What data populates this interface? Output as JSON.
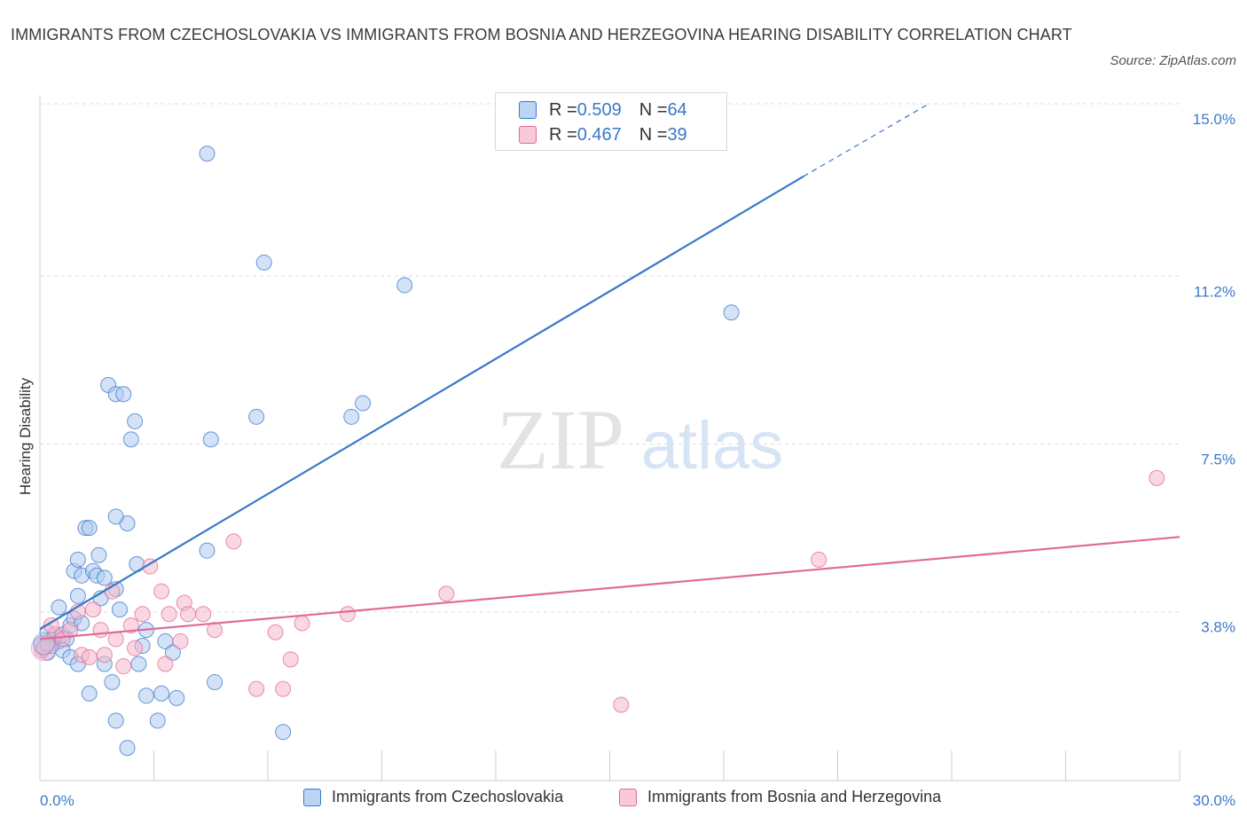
{
  "title": "IMMIGRANTS FROM CZECHOSLOVAKIA VS IMMIGRANTS FROM BOSNIA AND HERZEGOVINA HEARING DISABILITY CORRELATION CHART",
  "source": "Source: ZipAtlas.com",
  "watermark": {
    "zip": "ZIP",
    "atlas": "atlas"
  },
  "legend": {
    "blue": {
      "r_label": "R = ",
      "r_value": "0.509",
      "n_label": "N = ",
      "n_value": "64"
    },
    "pink": {
      "r_label": "R = ",
      "r_value": "0.467",
      "n_label": "N = ",
      "n_value": "39"
    }
  },
  "colors": {
    "blue": "#3a78c9",
    "blue_fill": "#aecbf0",
    "pink": "#e06a96",
    "pink_fill": "#f5b8cc",
    "grid": "#dddddd",
    "axis_label": "#3a78c9"
  },
  "chart_data": {
    "type": "scatter",
    "xlabel": "",
    "ylabel": "Hearing Disability",
    "xlim": [
      0,
      30
    ],
    "ylim": [
      0,
      15
    ],
    "x_tick_labels": [
      {
        "value": 0,
        "label": "0.0%"
      },
      {
        "value": 30,
        "label": "30.0%"
      }
    ],
    "y_tick_labels": [
      {
        "value": 3.8,
        "label": "3.8%"
      },
      {
        "value": 7.5,
        "label": "7.5%"
      },
      {
        "value": 11.2,
        "label": "11.2%"
      },
      {
        "value": 15.0,
        "label": "15.0%"
      }
    ],
    "grid": true,
    "legend_position": "top-center",
    "series": [
      {
        "name": "Immigrants from Czechoslovakia",
        "color": "#3a78c9",
        "trend": {
          "x0": 0,
          "y0": 3.42,
          "x1": 20.1,
          "y1": 13.4,
          "dashed_to_x": 23.4,
          "dashed_to_y": 15.0
        },
        "points": [
          [
            0.1,
            3.0
          ],
          [
            0.2,
            2.9
          ],
          [
            0.15,
            3.1
          ],
          [
            0.3,
            3.2
          ],
          [
            0.4,
            3.25
          ],
          [
            0.5,
            3.15
          ],
          [
            0.6,
            3.3
          ],
          [
            0.7,
            3.2
          ],
          [
            0.8,
            3.5
          ],
          [
            0.5,
            3.9
          ],
          [
            0.9,
            3.65
          ],
          [
            1.1,
            3.55
          ],
          [
            1.0,
            4.15
          ],
          [
            0.6,
            2.95
          ],
          [
            0.8,
            2.8
          ],
          [
            1.0,
            2.65
          ],
          [
            0.9,
            4.7
          ],
          [
            1.0,
            4.95
          ],
          [
            1.1,
            4.6
          ],
          [
            1.4,
            4.7
          ],
          [
            1.5,
            4.6
          ],
          [
            1.7,
            4.55
          ],
          [
            1.6,
            4.1
          ],
          [
            1.55,
            5.05
          ],
          [
            1.2,
            5.65
          ],
          [
            1.3,
            5.65
          ],
          [
            2.3,
            5.75
          ],
          [
            2.0,
            5.9
          ],
          [
            2.0,
            4.3
          ],
          [
            2.55,
            4.85
          ],
          [
            2.1,
            3.85
          ],
          [
            2.8,
            3.4
          ],
          [
            2.7,
            3.05
          ],
          [
            1.7,
            2.65
          ],
          [
            1.3,
            2.0
          ],
          [
            1.9,
            2.25
          ],
          [
            2.6,
            2.65
          ],
          [
            2.8,
            1.95
          ],
          [
            3.2,
            2.0
          ],
          [
            3.6,
            1.9
          ],
          [
            3.3,
            3.15
          ],
          [
            3.5,
            2.9
          ],
          [
            2.0,
            1.4
          ],
          [
            2.3,
            0.8
          ],
          [
            3.1,
            1.4
          ],
          [
            1.8,
            8.8
          ],
          [
            2.0,
            8.6
          ],
          [
            2.2,
            8.6
          ],
          [
            2.5,
            8.0
          ],
          [
            2.4,
            7.6
          ],
          [
            4.4,
            13.9
          ],
          [
            4.5,
            7.6
          ],
          [
            4.4,
            5.15
          ],
          [
            4.6,
            2.25
          ],
          [
            5.7,
            8.1
          ],
          [
            5.9,
            11.5
          ],
          [
            6.4,
            1.15
          ],
          [
            8.2,
            8.1
          ],
          [
            8.5,
            8.4
          ],
          [
            9.6,
            11.0
          ],
          [
            18.2,
            10.4
          ],
          [
            0.05,
            3.1
          ],
          [
            0.3,
            3.05
          ],
          [
            0.2,
            3.35
          ]
        ]
      },
      {
        "name": "Immigrants from Bosnia and Herzegovina",
        "color": "#e06a96",
        "trend": {
          "x0": 0,
          "y0": 3.2,
          "x1": 30,
          "y1": 5.45
        },
        "points": [
          [
            0.05,
            2.95
          ],
          [
            0.1,
            3.0
          ],
          [
            0.2,
            3.1
          ],
          [
            0.4,
            3.3
          ],
          [
            0.6,
            3.2
          ],
          [
            0.8,
            3.4
          ],
          [
            1.0,
            3.8
          ],
          [
            1.1,
            2.85
          ],
          [
            1.3,
            2.8
          ],
          [
            1.4,
            3.85
          ],
          [
            1.6,
            3.4
          ],
          [
            1.7,
            2.85
          ],
          [
            1.9,
            4.25
          ],
          [
            2.0,
            3.2
          ],
          [
            2.2,
            2.6
          ],
          [
            2.4,
            3.5
          ],
          [
            2.5,
            3.0
          ],
          [
            2.7,
            3.75
          ],
          [
            2.9,
            4.8
          ],
          [
            3.2,
            4.25
          ],
          [
            3.3,
            2.65
          ],
          [
            3.4,
            3.75
          ],
          [
            3.7,
            3.15
          ],
          [
            3.8,
            4.0
          ],
          [
            3.9,
            3.75
          ],
          [
            4.3,
            3.75
          ],
          [
            4.6,
            3.4
          ],
          [
            5.1,
            5.35
          ],
          [
            5.7,
            2.1
          ],
          [
            6.2,
            3.35
          ],
          [
            6.4,
            2.1
          ],
          [
            6.6,
            2.75
          ],
          [
            6.9,
            3.55
          ],
          [
            8.1,
            3.75
          ],
          [
            10.7,
            4.2
          ],
          [
            15.3,
            1.75
          ],
          [
            20.5,
            4.95
          ],
          [
            29.4,
            6.75
          ],
          [
            0.3,
            3.5
          ]
        ]
      }
    ]
  },
  "bottom_legend": {
    "blue_label": "Immigrants from Czechoslovakia",
    "pink_label": "Immigrants from Bosnia and Herzegovina"
  }
}
